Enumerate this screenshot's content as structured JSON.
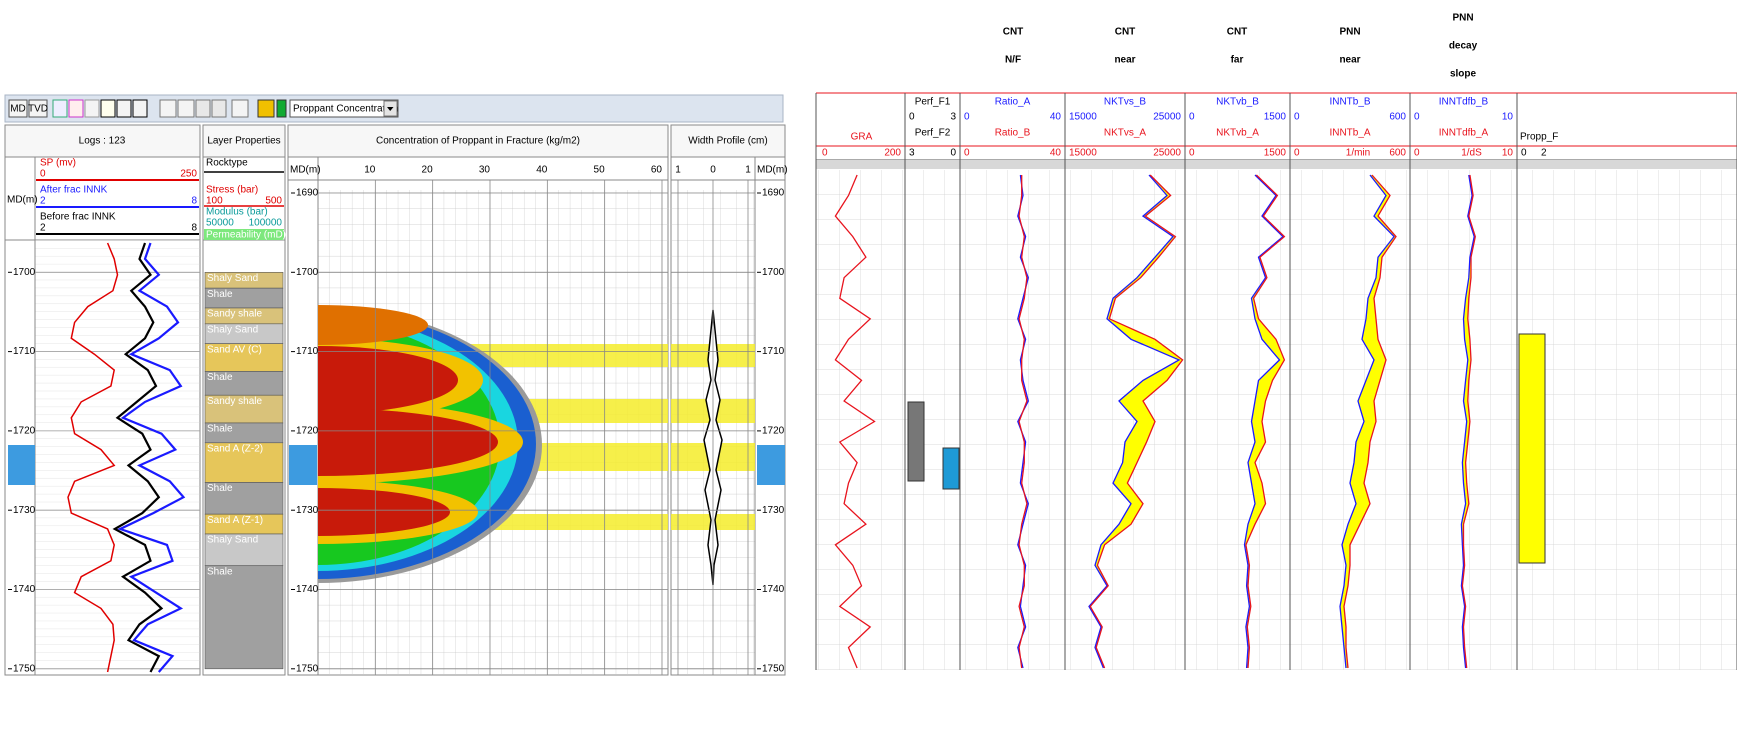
{
  "toolbar": {
    "md": "MD",
    "tvd": "TVD",
    "dropdown": "Proppant Concentration"
  },
  "left": {
    "depth_label": "MD(m)",
    "depth_ticks": [
      1690,
      1700,
      1710,
      1720,
      1730,
      1740,
      1750
    ],
    "logs": {
      "title": "Logs : 123",
      "curves": [
        {
          "name": "SP (mv)",
          "min": 0,
          "max": 250,
          "color": "#e00000",
          "values": [
            110,
            120,
            125,
            118,
            80,
            60,
            55,
            90,
            120,
            115,
            70,
            55,
            60,
            100,
            120,
            60,
            50,
            55,
            110,
            120,
            115,
            70,
            60,
            100,
            118,
            120,
            115,
            110
          ]
        },
        {
          "name": "After frac INNK",
          "min": 2,
          "max": 8,
          "color": "#1a1aff",
          "values": [
            6.2,
            6.0,
            6.5,
            5.8,
            6.8,
            7.2,
            6.5,
            5.5,
            6.9,
            7.3,
            6.0,
            5.2,
            6.6,
            7.1,
            5.8,
            6.9,
            7.4,
            6.3,
            5.1,
            6.8,
            7.0,
            5.5,
            6.4,
            7.3,
            6.1,
            5.6,
            7.0,
            6.5
          ]
        },
        {
          "name": "Before frac INNK",
          "min": 2,
          "max": 8,
          "color": "#000000",
          "values": [
            6.0,
            5.8,
            6.2,
            5.5,
            6.0,
            6.3,
            6.0,
            5.3,
            6.1,
            6.4,
            5.7,
            5.0,
            5.9,
            6.2,
            5.4,
            6.1,
            6.5,
            5.9,
            4.9,
            6.0,
            6.2,
            5.2,
            6.0,
            6.6,
            5.8,
            5.4,
            6.5,
            6.2
          ]
        }
      ]
    },
    "layers": {
      "title": "Layer Properties",
      "rocktype": "Rocktype",
      "stress": {
        "name": "Stress (bar)",
        "min": 100,
        "max": 500
      },
      "modulus": {
        "name": "Modulus (bar)",
        "min": 50000,
        "max": 100000
      },
      "permeability": "Permeability (mD)",
      "rows": [
        {
          "label": "Shaly Sand",
          "top": 1700,
          "bottom": 1702,
          "color": "#d9c27a"
        },
        {
          "label": "Shale",
          "top": 1702,
          "bottom": 1704.5,
          "color": "#a0a0a0"
        },
        {
          "label": "Sandy shale",
          "top": 1704.5,
          "bottom": 1706.5,
          "color": "#d9c27a"
        },
        {
          "label": "Shaly Sand",
          "top": 1706.5,
          "bottom": 1709,
          "color": "#c8c8c8"
        },
        {
          "label": "Sand AV (C)",
          "top": 1709,
          "bottom": 1712.5,
          "color": "#e6c65a"
        },
        {
          "label": "Shale",
          "top": 1712.5,
          "bottom": 1715.5,
          "color": "#a0a0a0"
        },
        {
          "label": "Sandy shale",
          "top": 1715.5,
          "bottom": 1719,
          "color": "#d9c27a"
        },
        {
          "label": "Shale",
          "top": 1719,
          "bottom": 1721.5,
          "color": "#a0a0a0"
        },
        {
          "label": "Sand A (Z-2)",
          "top": 1721.5,
          "bottom": 1726.5,
          "color": "#e6c65a"
        },
        {
          "label": "Shale",
          "top": 1726.5,
          "bottom": 1730.5,
          "color": "#a0a0a0"
        },
        {
          "label": "Sand A (Z-1)",
          "top": 1730.5,
          "bottom": 1733,
          "color": "#e6c65a"
        },
        {
          "label": "Shaly Sand",
          "top": 1733,
          "bottom": 1737,
          "color": "#c8c8c8"
        },
        {
          "label": "Shale",
          "top": 1737,
          "bottom": 1750,
          "color": "#a0a0a0"
        }
      ]
    },
    "concentration": {
      "title": "Concentration of Proppant in Fracture (kg/m2)",
      "xlim": [
        0,
        60
      ],
      "xticks": [
        10,
        20,
        30,
        40,
        50,
        60
      ]
    },
    "width": {
      "title": "Width Profile (cm)",
      "xlim": [
        -1,
        1
      ],
      "xticks": [
        {
          "value": -1,
          "label": "1"
        },
        0,
        1
      ]
    }
  },
  "right": {
    "titles": [
      [
        "CNT",
        "N/F"
      ],
      [
        "CNT",
        "near"
      ],
      [
        "CNT",
        "far"
      ],
      [
        "PNN",
        "near"
      ],
      [
        "PNN",
        "decay",
        "slope"
      ]
    ],
    "tracks": [
      {
        "curves": [
          {
            "name": "GRA",
            "min": 0,
            "max": 200,
            "color": "#e8141e",
            "values": [
              90,
              70,
              40,
              80,
              110,
              60,
              50,
              120,
              70,
              40,
              100,
              60,
              130,
              50,
              90,
              70,
              60,
              110,
              40,
              80,
              100,
              50,
              120,
              70,
              90
            ]
          }
        ]
      },
      {
        "curves": [
          {
            "name": "Perf_F1",
            "min": 0,
            "max": 3,
            "color": "#000000"
          },
          {
            "name": "Perf_F2",
            "min": 3,
            "max": 0,
            "color": "#000000"
          }
        ]
      },
      {
        "curves": [
          {
            "name": "Ratio_A",
            "min": 0,
            "max": 40,
            "color": "#1a1aff",
            "values": [
              23,
              24,
              22,
              25,
              23,
              26,
              24,
              22,
              25,
              23,
              24,
              26,
              22,
              25,
              24,
              23,
              26,
              24,
              22,
              25,
              24,
              23,
              25,
              22,
              24
            ]
          },
          {
            "name": "Ratio_B",
            "min": 0,
            "max": 40,
            "color": "#e8141e",
            "values": [
              23.5,
              23.5,
              22.5,
              24.5,
              23.5,
              25.5,
              24.5,
              22.5,
              24.5,
              23.5,
              23.5,
              25.5,
              22.5,
              24.5,
              24.5,
              23.5,
              25.5,
              23.5,
              22.5,
              24.5,
              24.5,
              22.5,
              24.5,
              22.5,
              23.5
            ]
          }
        ]
      },
      {
        "fill": "#ffff00",
        "curves": [
          {
            "name": "NKTvs_B",
            "min": 15000,
            "max": 25000,
            "color": "#1a1aff",
            "values": [
              22000,
              23500,
              21500,
              24000,
              22500,
              21000,
              19000,
              18500,
              20500,
              24500,
              21500,
              19500,
              21000,
              20000,
              19800,
              19000,
              20500,
              19500,
              18000,
              17500,
              18500,
              17000,
              18000,
              17500,
              18200
            ]
          },
          {
            "name": "NKTvs_A",
            "min": 15000,
            "max": 25000,
            "color": "#e8141e",
            "values": [
              22100,
              23800,
              21700,
              24200,
              22800,
              21300,
              19200,
              18700,
              22500,
              24800,
              23500,
              21500,
              22500,
              21800,
              21000,
              20200,
              21500,
              20500,
              18300,
              17700,
              18600,
              17100,
              18100,
              17600,
              18300
            ]
          }
        ]
      },
      {
        "fill": "#ffff00",
        "curves": [
          {
            "name": "NKTvb_B",
            "min": 0,
            "max": 1500,
            "color": "#1a1aff",
            "values": [
              1000,
              1300,
              1100,
              1400,
              1050,
              1150,
              950,
              1000,
              1100,
              1350,
              1050,
              1000,
              950,
              1000,
              900,
              950,
              1000,
              900,
              850,
              900,
              880,
              920,
              870,
              900,
              880
            ]
          },
          {
            "name": "NKTvb_A",
            "min": 0,
            "max": 1500,
            "color": "#e8141e",
            "values": [
              1020,
              1320,
              1120,
              1420,
              1070,
              1170,
              980,
              1050,
              1300,
              1420,
              1250,
              1150,
              1100,
              1150,
              1000,
              1100,
              1150,
              1000,
              870,
              920,
              900,
              940,
              890,
              920,
              900
            ]
          }
        ]
      },
      {
        "fill": "#ffff00",
        "curves": [
          {
            "name": "INNTb_B",
            "min": 0,
            "max": 600,
            "color": "#1a1aff",
            "values": [
              400,
              480,
              420,
              520,
              440,
              430,
              390,
              380,
              360,
              420,
              380,
              340,
              370,
              330,
              320,
              300,
              330,
              290,
              260,
              280,
              270,
              250,
              260,
              270,
              280
            ]
          },
          {
            "name": "INNTb_A",
            "min": 0,
            "max": 600,
            "unit": "1/min",
            "color": "#e8141e",
            "values": [
              410,
              500,
              440,
              530,
              460,
              450,
              420,
              430,
              440,
              480,
              450,
              420,
              430,
              400,
              390,
              370,
              400,
              350,
              300,
              300,
              290,
              270,
              280,
              280,
              290
            ]
          }
        ]
      },
      {
        "fill": "#ffff00",
        "curves": [
          {
            "name": "INNTdfb_B",
            "min": 0,
            "max": 10,
            "color": "#1a1aff",
            "values": [
              5.5,
              5.8,
              5.4,
              6.0,
              5.6,
              5.5,
              5.2,
              5.0,
              5.1,
              5.4,
              5.2,
              5.0,
              5.3,
              5.1,
              4.9,
              5.0,
              5.2,
              4.8,
              4.9,
              5.0,
              4.8,
              5.1,
              4.9,
              5.0,
              5.2
            ]
          },
          {
            "name": "INNTdfb_A",
            "min": 0,
            "max": 10,
            "unit": "1/dS",
            "color": "#e8141e",
            "values": [
              5.6,
              5.9,
              5.5,
              6.1,
              5.7,
              5.7,
              5.5,
              5.4,
              5.6,
              5.7,
              5.5,
              5.4,
              5.6,
              5.4,
              5.2,
              5.3,
              5.5,
              5.0,
              5.0,
              5.1,
              4.9,
              5.2,
              5.0,
              5.1,
              5.3
            ]
          }
        ]
      },
      {
        "curves": [
          {
            "name": "Propp_F",
            "min": 0,
            "max": 2,
            "color": "#000000"
          }
        ]
      }
    ]
  }
}
